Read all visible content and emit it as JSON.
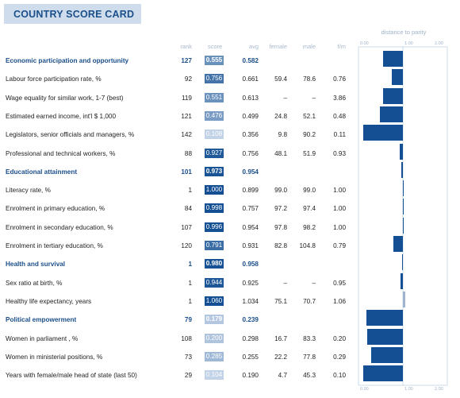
{
  "title": "COUNTRY SCORE CARD",
  "columns": {
    "rank": "rank",
    "score": "score",
    "avg": "avg",
    "female": "female",
    "male": "male",
    "fm": "f/m"
  },
  "distance_title": "distance to parity",
  "axis_ticks": [
    "0.00",
    "1.00",
    "2.00"
  ],
  "colors": {
    "category_text": "#1b4f8a",
    "bar": "#134f92",
    "title_bg": "#cfdcec"
  },
  "rows": [
    {
      "type": "cat",
      "label": "Economic participation and opportunity",
      "rank": "127",
      "score": "0.555",
      "avg": "0.582",
      "female": "",
      "male": "",
      "fm": ""
    },
    {
      "type": "item",
      "label": "Labour force participation rate, %",
      "rank": "92",
      "score": "0.756",
      "avg": "0.661",
      "female": "59.4",
      "male": "78.6",
      "fm": "0.76"
    },
    {
      "type": "item",
      "label": "Wage equality for similar work, 1-7 (best)",
      "rank": "119",
      "score": "0.551",
      "avg": "0.613",
      "female": "–",
      "male": "–",
      "fm": "3.86"
    },
    {
      "type": "item",
      "label": "Estimated earned income, int'l $ 1,000",
      "rank": "121",
      "score": "0.476",
      "avg": "0.499",
      "female": "24.8",
      "male": "52.1",
      "fm": "0.48"
    },
    {
      "type": "item",
      "label": "Legislators, senior officials and managers, %",
      "rank": "142",
      "score": "0.108",
      "avg": "0.356",
      "female": "9.8",
      "male": "90.2",
      "fm": "0.11"
    },
    {
      "type": "item",
      "label": "Professional and technical workers, %",
      "rank": "88",
      "score": "0.927",
      "avg": "0.756",
      "female": "48.1",
      "male": "51.9",
      "fm": "0.93"
    },
    {
      "type": "cat",
      "label": "Educational attainment",
      "rank": "101",
      "score": "0.973",
      "avg": "0.954",
      "female": "",
      "male": "",
      "fm": ""
    },
    {
      "type": "item",
      "label": "Literacy rate, %",
      "rank": "1",
      "score": "1.000",
      "avg": "0.899",
      "female": "99.0",
      "male": "99.0",
      "fm": "1.00"
    },
    {
      "type": "item",
      "label": "Enrolment in primary education, %",
      "rank": "84",
      "score": "0.998",
      "avg": "0.757",
      "female": "97.2",
      "male": "97.4",
      "fm": "1.00"
    },
    {
      "type": "item",
      "label": "Enrolment in secondary education, %",
      "rank": "107",
      "score": "0.996",
      "avg": "0.954",
      "female": "97.8",
      "male": "98.2",
      "fm": "1.00"
    },
    {
      "type": "item",
      "label": "Enrolment in tertiary education, %",
      "rank": "120",
      "score": "0.791",
      "avg": "0.931",
      "female": "82.8",
      "male": "104.8",
      "fm": "0.79"
    },
    {
      "type": "cat",
      "label": "Health and survival",
      "rank": "1",
      "score": "0.980",
      "avg": "0.958",
      "female": "",
      "male": "",
      "fm": ""
    },
    {
      "type": "item",
      "label": "Sex ratio at birth, %",
      "rank": "1",
      "score": "0.944",
      "avg": "0.925",
      "female": "–",
      "male": "–",
      "fm": "0.95"
    },
    {
      "type": "item",
      "label": "Healthy life expectancy, years",
      "rank": "1",
      "score": "1.060",
      "avg": "1.034",
      "female": "75.1",
      "male": "70.7",
      "fm": "1.06"
    },
    {
      "type": "cat",
      "label": "Political empowerment",
      "rank": "79",
      "score": "0.179",
      "avg": "0.239",
      "female": "",
      "male": "",
      "fm": ""
    },
    {
      "type": "item",
      "label": "Women in parliament ,  %",
      "rank": "108",
      "score": "0.200",
      "avg": "0.298",
      "female": "16.7",
      "male": "83.3",
      "fm": "0.20"
    },
    {
      "type": "item",
      "label": "Women in ministerial positions, %",
      "rank": "73",
      "score": "0.285",
      "avg": "0.255",
      "female": "22.2",
      "male": "77.8",
      "fm": "0.29"
    },
    {
      "type": "item",
      "label": "Years with female/male head of state (last 50)",
      "rank": "29",
      "score": "0.104",
      "avg": "0.190",
      "female": "4.7",
      "male": "45.3",
      "fm": "0.10"
    }
  ]
}
